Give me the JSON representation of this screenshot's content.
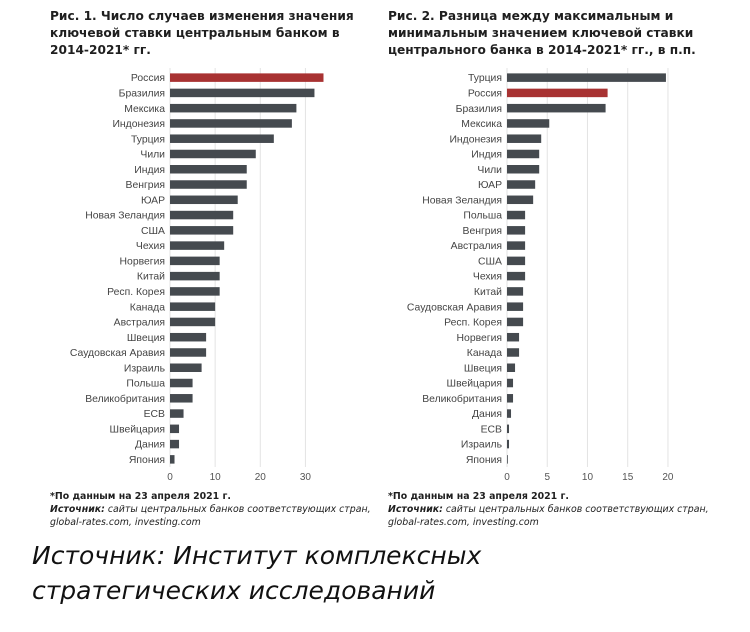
{
  "chart_data": [
    {
      "type": "bar",
      "orientation": "horizontal",
      "title": "Рис. 1. Число случаев изменения значения ключевой ставки центральным банком в 2014-2021* гг.",
      "categories": [
        "Россия",
        "Бразилия",
        "Мексика",
        "Индонезия",
        "Турция",
        "Чили",
        "Индия",
        "Венгрия",
        "ЮАР",
        "Новая Зеландия",
        "США",
        "Чехия",
        "Норвегия",
        "Китай",
        "Респ. Корея",
        "Канада",
        "Австралия",
        "Швеция",
        "Саудовская Аравия",
        "Израиль",
        "Польша",
        "Великобритания",
        "ЕСВ",
        "Швейцария",
        "Дания",
        "Япония"
      ],
      "values": [
        34,
        32,
        28,
        27,
        23,
        19,
        17,
        17,
        15,
        14,
        14,
        12,
        11,
        11,
        11,
        10,
        10,
        8,
        8,
        7,
        5,
        5,
        3,
        2,
        2,
        1
      ],
      "highlight_index": 0,
      "xticks": [
        0,
        10,
        20,
        30
      ],
      "xlim": [
        0,
        35
      ],
      "colors": {
        "bar": "#454a4f",
        "highlight": "#a83232",
        "grid": "#e3e3e3"
      },
      "footnote": "*По данным на 23 апреля 2021 г.",
      "source_label": "Источник:",
      "source_text": "сайты центральных банков соответствующих стран, global-rates.com, investing.com"
    },
    {
      "type": "bar",
      "orientation": "horizontal",
      "title": "Рис. 2. Разница между максимальным и минимальным значением ключевой ставки центрального банка в 2014-2021* гг., в п.п.",
      "categories": [
        "Турция",
        "Россия",
        "Бразилия",
        "Мексика",
        "Индонезия",
        "Индия",
        "Чили",
        "ЮАР",
        "Новая Зеландия",
        "Польша",
        "Венгрия",
        "Австралия",
        "США",
        "Чехия",
        "Китай",
        "Саудовская Аравия",
        "Респ. Корея",
        "Норвегия",
        "Канада",
        "Швеция",
        "Швейцария",
        "Великобритания",
        "Дания",
        "ЕСВ",
        "Израиль",
        "Япония"
      ],
      "values": [
        19.75,
        12.5,
        12.25,
        5.25,
        4.25,
        4.0,
        4.0,
        3.5,
        3.25,
        2.25,
        2.25,
        2.25,
        2.25,
        2.25,
        2.0,
        2.0,
        2.0,
        1.5,
        1.5,
        1.0,
        0.75,
        0.75,
        0.5,
        0.25,
        0.25,
        0.1
      ],
      "highlight_index": 1,
      "xticks": [
        0,
        5,
        10,
        15,
        20
      ],
      "xlim": [
        0,
        21
      ],
      "colors": {
        "bar": "#454a4f",
        "highlight": "#a83232",
        "grid": "#e3e3e3"
      },
      "footnote": "*По данным на 23 апреля 2021 г.",
      "source_label": "Источник:",
      "source_text": "сайты центральных банков соответствующих стран, global-rates.com, investing.com"
    }
  ],
  "caption": "Источник: Институт комплексных\nстратегических исследований"
}
